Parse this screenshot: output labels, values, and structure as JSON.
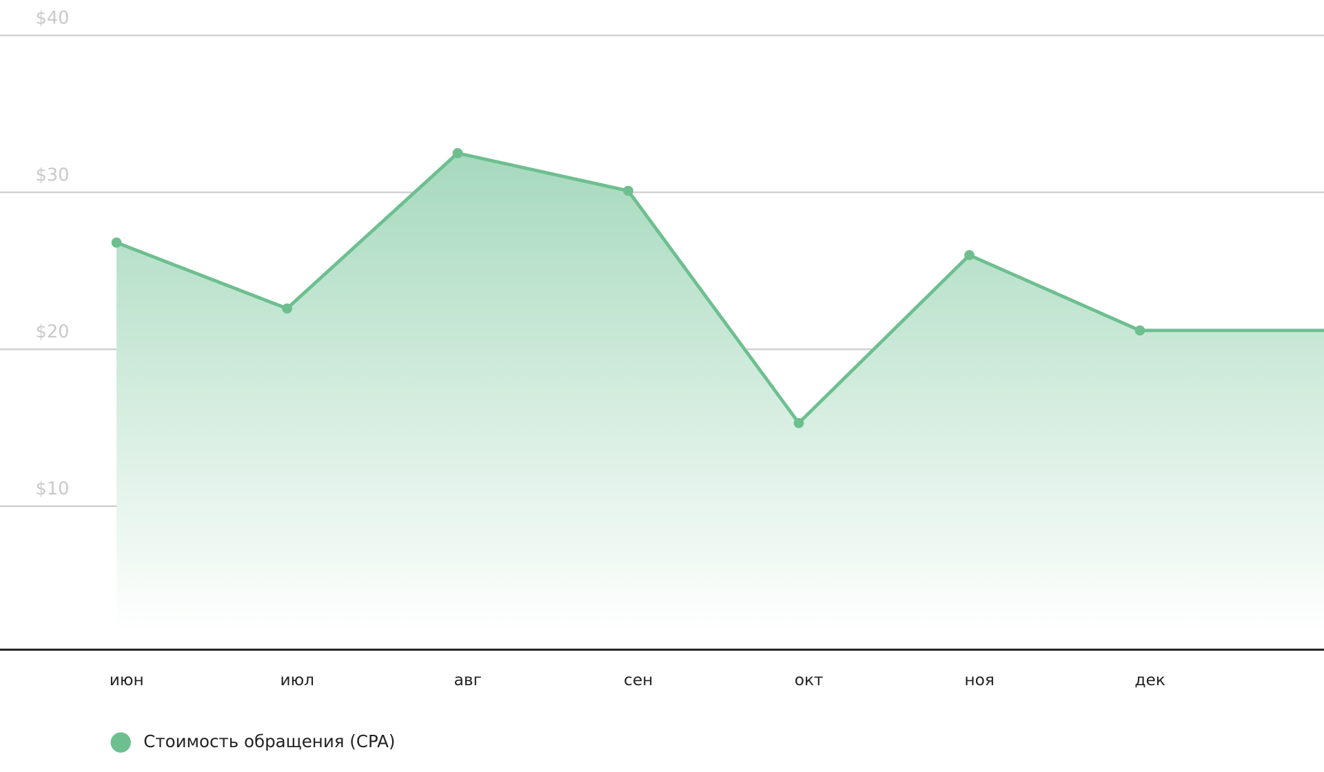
{
  "chart_data": {
    "type": "area",
    "categories": [
      "июн",
      "июл",
      "авг",
      "сен",
      "окт",
      "ноя",
      "дек"
    ],
    "series": [
      {
        "name": "Стоимость обращения (CPA)",
        "color": "#6dbf8f",
        "values": [
          26.8,
          22.6,
          32.5,
          30.1,
          15.3,
          26.0,
          21.2
        ]
      }
    ],
    "ylim": [
      0,
      40
    ],
    "yticks": [
      {
        "value": 10,
        "label": "$10"
      },
      {
        "value": 20,
        "label": "$20"
      },
      {
        "value": 30,
        "label": "$30"
      },
      {
        "value": 40,
        "label": "$40"
      }
    ],
    "grid": true
  }
}
